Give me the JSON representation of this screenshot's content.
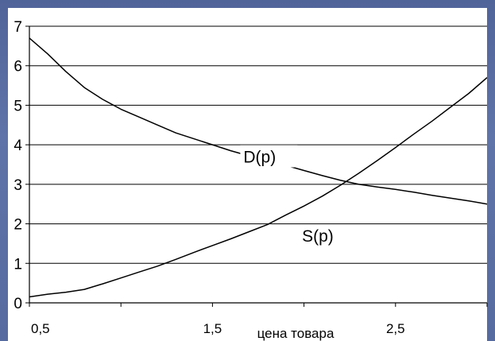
{
  "chart_data": {
    "type": "line",
    "title": "",
    "xlabel": "цена товара",
    "ylabel": "",
    "xlim": [
      0.5,
      3.0
    ],
    "ylim": [
      0,
      7
    ],
    "grid": "horizontal",
    "y_ticks": [
      "0",
      "1",
      "2",
      "3",
      "4",
      "5",
      "6",
      "7"
    ],
    "x_ticks": [
      {
        "value": 0.5,
        "label": "0,5"
      },
      {
        "value": 1.5,
        "label": "1,5"
      },
      {
        "value": 2.5,
        "label": "2,5"
      }
    ],
    "series": [
      {
        "name": "D(p)",
        "x": [
          0.5,
          0.6,
          0.7,
          0.8,
          0.9,
          1.0,
          1.1,
          1.2,
          1.3,
          1.4,
          1.5,
          1.6,
          1.7,
          1.8,
          1.9,
          2.0,
          2.1,
          2.2,
          2.3,
          2.4,
          2.5,
          2.6,
          2.7,
          2.8,
          2.9,
          3.0
        ],
        "values": [
          6.7,
          6.3,
          5.85,
          5.45,
          5.15,
          4.9,
          4.7,
          4.5,
          4.3,
          4.15,
          4.0,
          3.85,
          3.72,
          3.6,
          3.48,
          3.35,
          3.22,
          3.1,
          3.0,
          2.93,
          2.87,
          2.8,
          2.72,
          2.65,
          2.58,
          2.5
        ]
      },
      {
        "name": "S(p)",
        "x": [
          0.5,
          0.6,
          0.7,
          0.8,
          0.9,
          1.0,
          1.1,
          1.2,
          1.3,
          1.4,
          1.5,
          1.6,
          1.7,
          1.8,
          1.9,
          2.0,
          2.1,
          2.2,
          2.3,
          2.4,
          2.5,
          2.6,
          2.7,
          2.8,
          2.9,
          3.0
        ],
        "values": [
          0.15,
          0.22,
          0.27,
          0.34,
          0.48,
          0.63,
          0.78,
          0.93,
          1.1,
          1.28,
          1.45,
          1.62,
          1.8,
          1.98,
          2.22,
          2.45,
          2.7,
          2.98,
          3.28,
          3.6,
          3.93,
          4.27,
          4.6,
          4.95,
          5.3,
          5.7
        ]
      }
    ],
    "labels": [
      {
        "text": "D(p)",
        "x": 1.73,
        "y": 3.55
      },
      {
        "text": "S(p)",
        "x": 2.05,
        "y": 1.55
      }
    ]
  }
}
